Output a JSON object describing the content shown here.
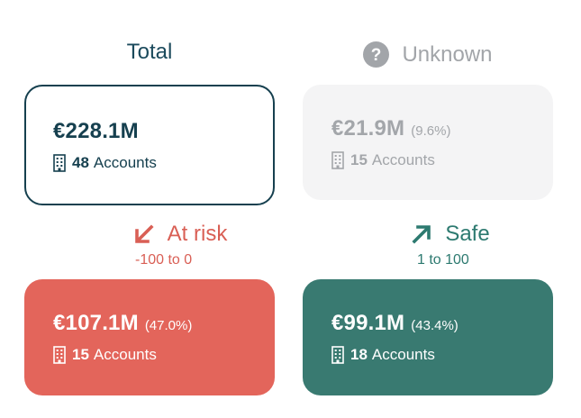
{
  "colors": {
    "total": "#16404f",
    "unknown": "#a3a6aa",
    "risk": "#e3655b",
    "safe": "#397a71"
  },
  "total": {
    "heading": "Total",
    "amount": "€228.1M",
    "count": "48",
    "accounts_label": "Accounts"
  },
  "unknown": {
    "icon": "question-circle-icon",
    "heading": "Unknown",
    "amount": "€21.9M",
    "percent": "(9.6%)",
    "count": "15",
    "accounts_label": "Accounts"
  },
  "at_risk": {
    "icon": "arrow-down-left-icon",
    "heading": "At risk",
    "range": "-100 to 0",
    "amount": "€107.1M",
    "percent": "(47.0%)",
    "count": "15",
    "accounts_label": "Accounts"
  },
  "safe": {
    "icon": "arrow-up-right-icon",
    "heading": "Safe",
    "range": "1 to 100",
    "amount": "€99.1M",
    "percent": "(43.4%)",
    "count": "18",
    "accounts_label": "Accounts"
  }
}
